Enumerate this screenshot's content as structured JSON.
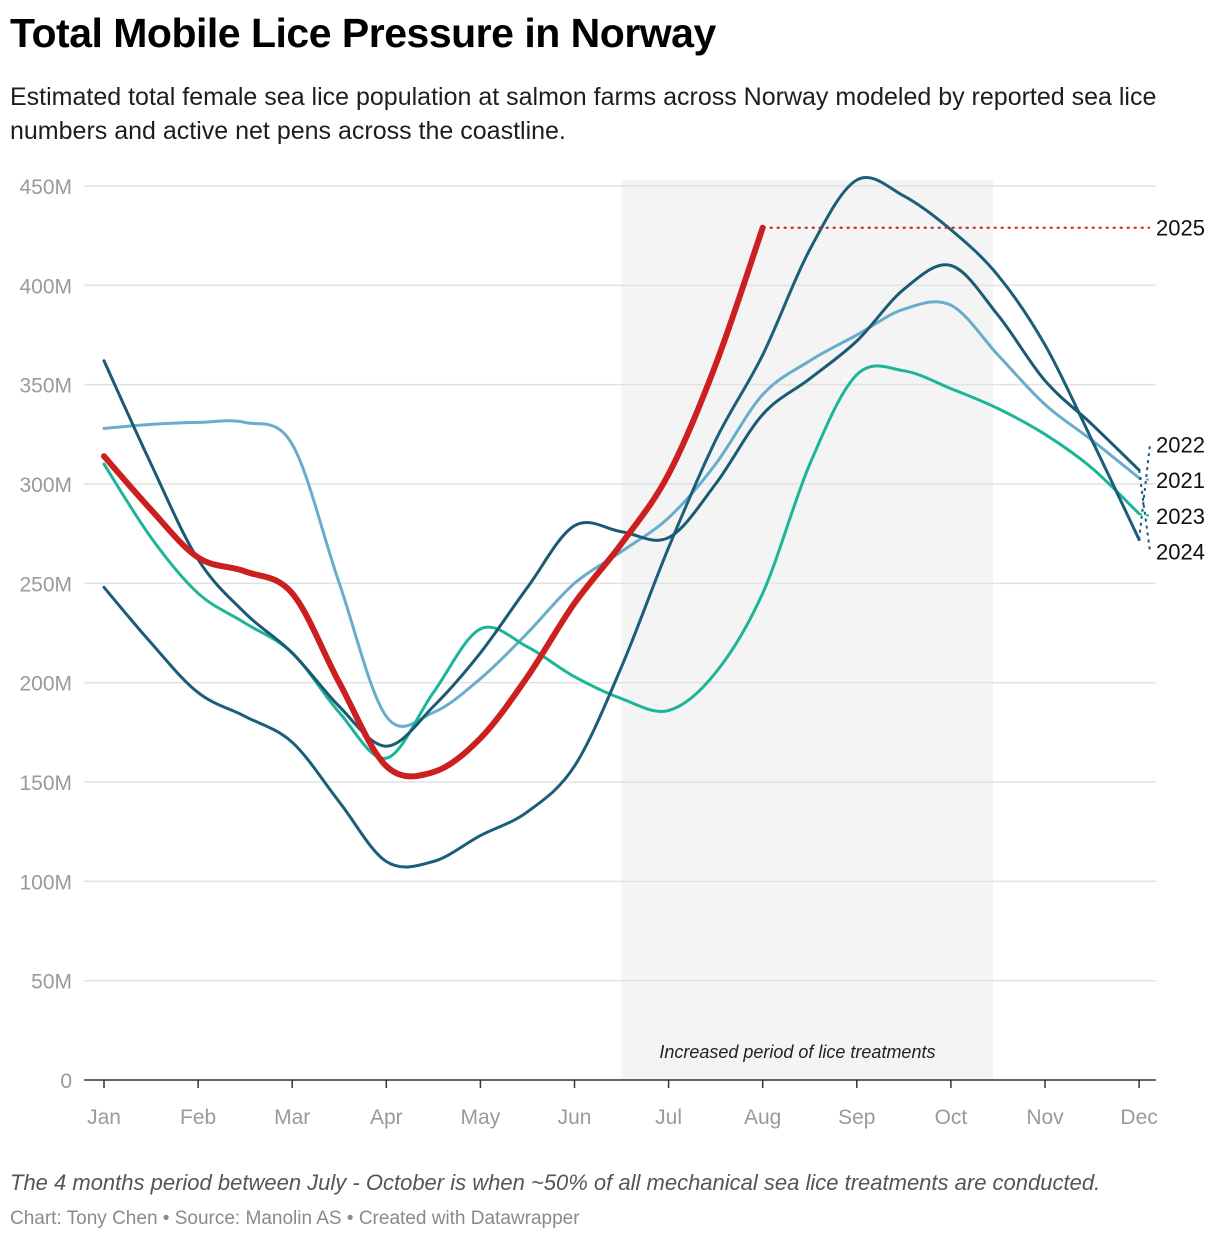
{
  "header": {
    "title": "Total Mobile Lice Pressure in Norway",
    "subtitle": "Estimated total female sea lice population at salmon farms across Norway modeled by reported sea lice numbers and active net pens across the coastline."
  },
  "footer": {
    "note": "The 4 months period between July - October is when ~50% of all mechanical sea lice treatments are conducted.",
    "credit_chart": "Chart: Tony Chen",
    "separator": " • ",
    "credit_source": "Source: Manolin AS",
    "credit_tool": "Created with Datawrapper"
  },
  "chart_data": {
    "type": "line",
    "title": "Total Mobile Lice Pressure in Norway",
    "xlabel": "",
    "ylabel": "",
    "ylim": [
      0,
      450000000
    ],
    "yticks": [
      0,
      50000000,
      100000000,
      150000000,
      200000000,
      250000000,
      300000000,
      350000000,
      400000000,
      450000000
    ],
    "ytick_labels": [
      "0",
      "50M",
      "100M",
      "150M",
      "200M",
      "250M",
      "300M",
      "350M",
      "400M",
      "450M"
    ],
    "categories": [
      "Jan",
      "Feb",
      "Mar",
      "Apr",
      "May",
      "Jun",
      "Jul",
      "Aug",
      "Sep",
      "Oct",
      "Nov",
      "Dec"
    ],
    "grid": true,
    "shaded_region": {
      "x_start": 5.5,
      "x_end": 9.45,
      "label": "Increased period of lice treatments",
      "color": "#f4f4f4"
    },
    "series": [
      {
        "name": "2021",
        "color": "#6aaccc",
        "width": 3,
        "x": [
          0,
          0.5,
          1,
          1.5,
          2,
          2.5,
          3,
          3.5,
          4,
          4.5,
          5,
          5.5,
          6,
          6.5,
          7,
          7.5,
          8,
          8.5,
          9,
          9.5,
          10,
          10.5,
          11
        ],
        "values": [
          328000000,
          330000000,
          331000000,
          331000000,
          320000000,
          250000000,
          183000000,
          185000000,
          202000000,
          225000000,
          250000000,
          266000000,
          283000000,
          310000000,
          345000000,
          362000000,
          375000000,
          388000000,
          390000000,
          365000000,
          340000000,
          322000000,
          303000000
        ]
      },
      {
        "name": "2022",
        "color": "#1b5e79",
        "width": 3,
        "x": [
          0,
          0.5,
          1,
          1.5,
          2,
          2.5,
          3,
          3.5,
          4,
          4.5,
          5,
          5.5,
          6,
          6.5,
          7,
          7.5,
          8,
          8.5,
          9,
          9.5,
          10,
          10.5,
          11
        ],
        "values": [
          248000000,
          220000000,
          195000000,
          183000000,
          170000000,
          140000000,
          110000000,
          110000000,
          123000000,
          135000000,
          158000000,
          208000000,
          268000000,
          322000000,
          365000000,
          418000000,
          453000000,
          445000000,
          428000000,
          405000000,
          370000000,
          322000000,
          272000000
        ]
      },
      {
        "name": "2023",
        "color": "#1db598",
        "width": 3,
        "x": [
          0,
          0.5,
          1,
          1.5,
          2,
          2.5,
          3,
          3.5,
          4,
          4.5,
          5,
          5.5,
          6,
          6.5,
          7,
          7.5,
          8,
          8.5,
          9,
          9.5,
          10,
          10.5,
          11
        ],
        "values": [
          310000000,
          273000000,
          245000000,
          230000000,
          215000000,
          185000000,
          162000000,
          195000000,
          227000000,
          218000000,
          203000000,
          192000000,
          186000000,
          205000000,
          245000000,
          310000000,
          355000000,
          357000000,
          348000000,
          338000000,
          325000000,
          308000000,
          285000000
        ]
      },
      {
        "name": "2024",
        "color": "#1a5a74",
        "width": 3,
        "x": [
          0,
          0.5,
          1,
          1.5,
          2,
          2.5,
          3,
          3.5,
          4,
          4.5,
          5,
          5.5,
          6,
          6.5,
          7,
          7.5,
          8,
          8.5,
          9,
          9.5,
          10,
          10.5,
          11
        ],
        "values": [
          362000000,
          310000000,
          262000000,
          235000000,
          215000000,
          188000000,
          168000000,
          188000000,
          215000000,
          248000000,
          279000000,
          276000000,
          273000000,
          300000000,
          335000000,
          353000000,
          372000000,
          398000000,
          410000000,
          385000000,
          352000000,
          330000000,
          307000000
        ]
      },
      {
        "name": "2025",
        "color": "#cc1f1f",
        "width": 6,
        "x": [
          0,
          0.5,
          1,
          1.5,
          2,
          2.5,
          3,
          3.5,
          4,
          4.5,
          5,
          5.5,
          6,
          6.5,
          7
        ],
        "values": [
          314000000,
          287000000,
          263000000,
          256000000,
          245000000,
          200000000,
          158000000,
          155000000,
          172000000,
          203000000,
          240000000,
          270000000,
          305000000,
          360000000,
          429000000
        ]
      }
    ],
    "end_labels": [
      {
        "series": "2025",
        "label": "2025",
        "label_y": 429000000
      },
      {
        "series": "2022",
        "label": "2022",
        "label_y": 320000000
      },
      {
        "series": "2021",
        "label": "2021",
        "label_y": 302000000
      },
      {
        "series": "2023",
        "label": "2023",
        "label_y": 284000000
      },
      {
        "series": "2024",
        "label": "2024",
        "label_y": 266000000
      }
    ]
  }
}
